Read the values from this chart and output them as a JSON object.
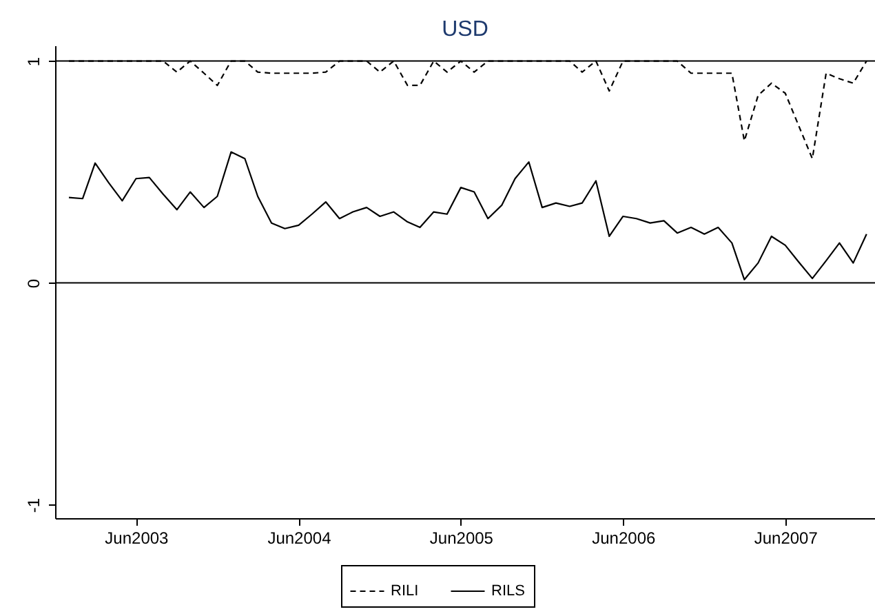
{
  "chart_data": {
    "type": "line",
    "title": "USD",
    "x": [
      "2003-01",
      "2003-02",
      "2003-03",
      "2003-04",
      "2003-05",
      "2003-06",
      "2003-07",
      "2003-08",
      "2003-09",
      "2003-10",
      "2003-11",
      "2003-12",
      "2004-01",
      "2004-02",
      "2004-03",
      "2004-04",
      "2004-05",
      "2004-06",
      "2004-07",
      "2004-08",
      "2004-09",
      "2004-10",
      "2004-11",
      "2004-12",
      "2005-01",
      "2005-02",
      "2005-03",
      "2005-04",
      "2005-05",
      "2005-06",
      "2005-07",
      "2005-08",
      "2005-09",
      "2005-10",
      "2005-11",
      "2005-12",
      "2006-01",
      "2006-02",
      "2006-03",
      "2006-04",
      "2006-05",
      "2006-06",
      "2006-07",
      "2006-08",
      "2006-09",
      "2006-10",
      "2006-11",
      "2006-12",
      "2007-01",
      "2007-02",
      "2007-03",
      "2007-04",
      "2007-05",
      "2007-06",
      "2007-07",
      "2007-08",
      "2007-09",
      "2007-10",
      "2007-11",
      "2007-12"
    ],
    "series": [
      {
        "name": "RILI",
        "color": "#000000",
        "line_style": "dashed",
        "values": [
          1,
          1,
          1,
          1,
          1,
          1,
          1,
          1,
          0.95,
          1,
          0.945,
          0.89,
          1,
          1,
          0.95,
          0.945,
          0.945,
          0.945,
          0.945,
          0.95,
          1,
          1,
          1,
          0.95,
          1,
          0.89,
          0.89,
          1,
          0.95,
          1,
          0.95,
          1,
          1,
          1,
          1,
          1,
          1,
          1,
          0.95,
          1,
          0.865,
          1,
          1,
          1,
          1,
          1,
          0.945,
          0.945,
          0.945,
          0.945,
          0.64,
          0.845,
          0.9,
          0.855,
          0.71,
          0.56,
          0.945,
          0.92,
          0.9,
          1
        ]
      },
      {
        "name": "RILS",
        "color": "#000000",
        "line_style": "solid",
        "values": [
          0.385,
          0.38,
          0.54,
          0.45,
          0.37,
          0.47,
          0.475,
          0.4,
          0.33,
          0.41,
          0.34,
          0.39,
          0.59,
          0.56,
          0.39,
          0.27,
          0.245,
          0.26,
          0.31,
          0.365,
          0.29,
          0.32,
          0.34,
          0.3,
          0.32,
          0.275,
          0.25,
          0.32,
          0.31,
          0.43,
          0.41,
          0.29,
          0.35,
          0.47,
          0.545,
          0.34,
          0.36,
          0.345,
          0.36,
          0.46,
          0.21,
          0.3,
          0.29,
          0.27,
          0.28,
          0.225,
          0.25,
          0.22,
          0.25,
          0.18,
          0.015,
          0.09,
          0.21,
          0.17,
          0.095,
          0.02,
          0.1,
          0.18,
          0.09,
          0.22
        ]
      }
    ],
    "xlim": [
      "2002-12",
      "2007-12-20"
    ],
    "xticks": [
      {
        "value": "2003-06",
        "label": "Jun2003"
      },
      {
        "value": "2004-06",
        "label": "Jun2004"
      },
      {
        "value": "2005-06",
        "label": "Jun2005"
      },
      {
        "value": "2006-06",
        "label": "Jun2006"
      },
      {
        "value": "2007-06",
        "label": "Jun2007"
      }
    ],
    "ylim": [
      -1.06,
      1.07
    ],
    "yticks": [
      -1,
      0,
      1
    ],
    "ref_lines": [
      {
        "axis": "y",
        "value": 0
      },
      {
        "axis": "y",
        "value": 1
      }
    ],
    "grid": false,
    "legend": "bottom"
  }
}
